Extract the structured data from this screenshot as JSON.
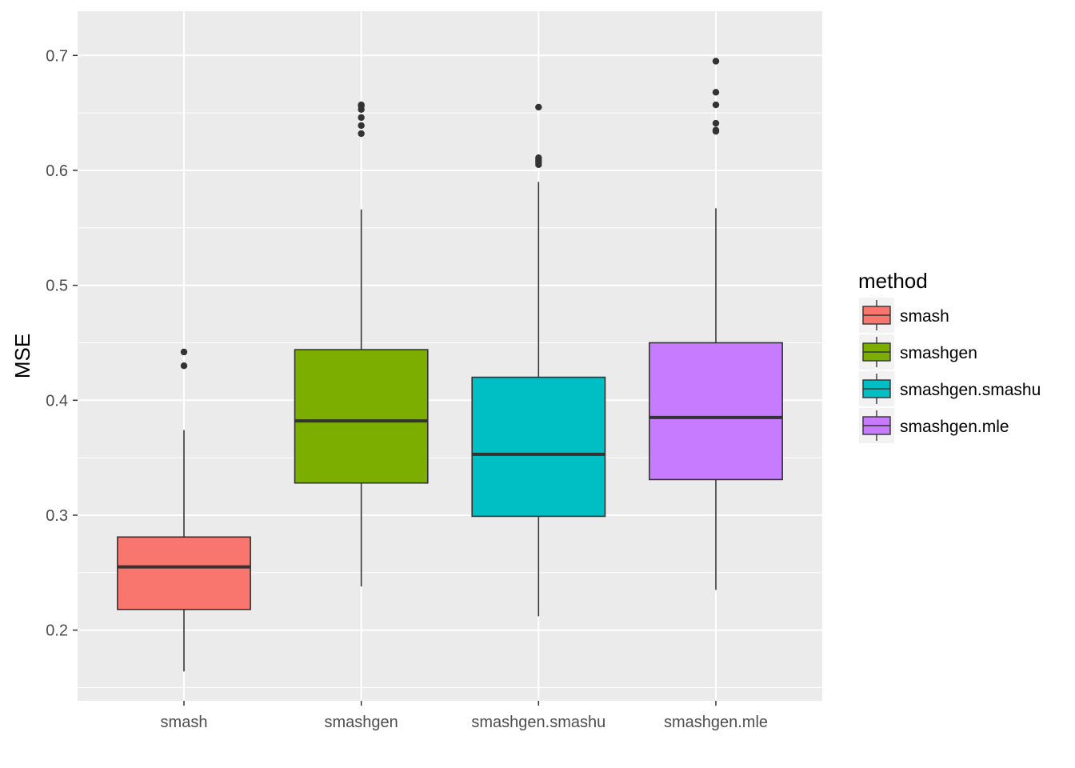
{
  "chart_data": {
    "type": "boxplot",
    "ylabel": "MSE",
    "xlabel": "",
    "ylim": [
      0.1385,
      0.7385
    ],
    "yticks": [
      0.2,
      0.3,
      0.4,
      0.5,
      0.6,
      0.7
    ],
    "ytick_labels": [
      "0.2",
      "0.3",
      "0.4",
      "0.5",
      "0.6",
      "0.7"
    ],
    "grid": true,
    "legend": {
      "title": "method",
      "position": "right"
    },
    "categories": [
      "smash",
      "smashgen",
      "smashgen.smashu",
      "smashgen.mle"
    ],
    "series": [
      {
        "name": "smash",
        "color": "#F8766D",
        "min": 0.164,
        "q1": 0.218,
        "median": 0.255,
        "q3": 0.281,
        "max": 0.374,
        "outliers": [
          0.43,
          0.442
        ]
      },
      {
        "name": "smashgen",
        "color": "#7CAE00",
        "min": 0.238,
        "q1": 0.328,
        "median": 0.382,
        "q3": 0.444,
        "max": 0.566,
        "outliers": [
          0.632,
          0.639,
          0.646,
          0.653,
          0.656,
          0.657
        ]
      },
      {
        "name": "smashgen.smashu",
        "color": "#00BFC4",
        "min": 0.212,
        "q1": 0.299,
        "median": 0.353,
        "q3": 0.42,
        "max": 0.59,
        "outliers": [
          0.605,
          0.607,
          0.609,
          0.611,
          0.655
        ]
      },
      {
        "name": "smashgen.mle",
        "color": "#C77CFF",
        "min": 0.235,
        "q1": 0.331,
        "median": 0.385,
        "q3": 0.45,
        "max": 0.567,
        "outliers": [
          0.634,
          0.635,
          0.641,
          0.657,
          0.668,
          0.695
        ]
      }
    ]
  }
}
